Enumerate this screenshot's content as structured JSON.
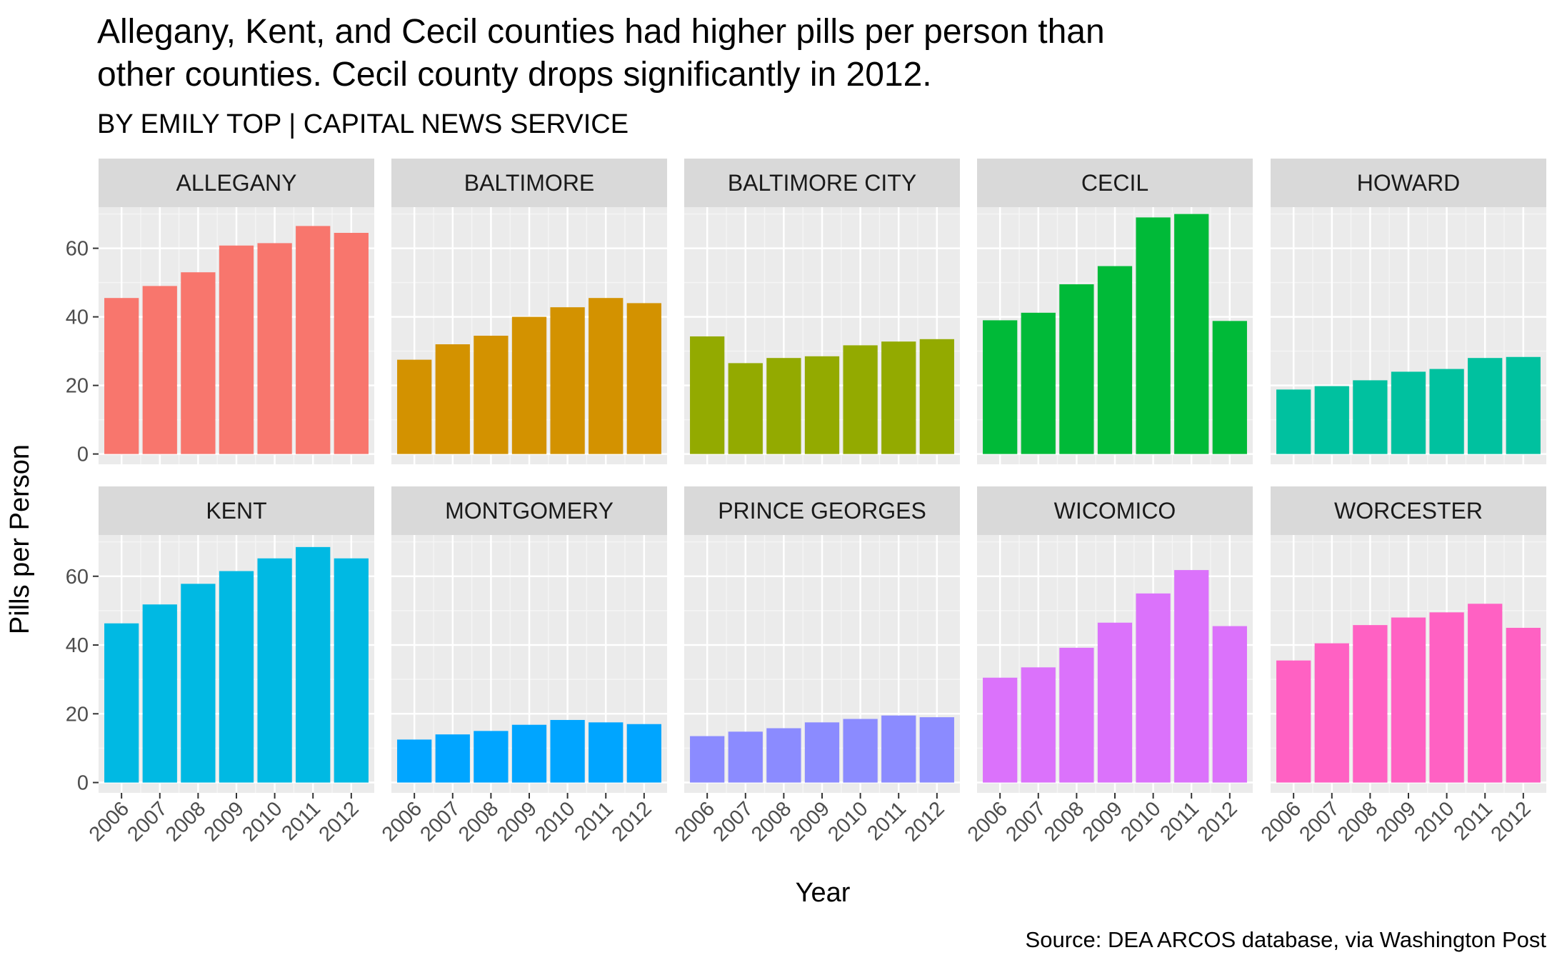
{
  "chart_data": {
    "type": "bar",
    "title_lines": [
      "Allegany, Kent, and Cecil counties had higher pills per person than",
      "other counties. Cecil county drops significantly in 2012."
    ],
    "subtitle": "BY EMILY TOP | CAPITAL NEWS SERVICE",
    "caption": "Source: DEA ARCOS database, via Washington Post",
    "xlabel": "Year",
    "ylabel": "Pills per Person",
    "ylim": [
      -3,
      72
    ],
    "yticks": [
      0,
      20,
      40,
      60
    ],
    "categories": [
      "2006",
      "2007",
      "2008",
      "2009",
      "2010",
      "2011",
      "2012"
    ],
    "facet_layout": "2 rows x 5 columns",
    "facets": [
      {
        "name": "ALLEGANY",
        "color": "#F8766D",
        "values": [
          45.5,
          49,
          53,
          60.8,
          61.5,
          66.5,
          64.5
        ]
      },
      {
        "name": "BALTIMORE",
        "color": "#D39200",
        "values": [
          27.5,
          32,
          34.5,
          40,
          42.8,
          45.5,
          44
        ]
      },
      {
        "name": "BALTIMORE CITY",
        "color": "#93AA00",
        "values": [
          34.3,
          26.5,
          28,
          28.5,
          31.7,
          32.8,
          33.5
        ]
      },
      {
        "name": "CECIL",
        "color": "#00BA38",
        "values": [
          39,
          41.2,
          49.5,
          54.8,
          69,
          70,
          38.8
        ]
      },
      {
        "name": "HOWARD",
        "color": "#00C19F",
        "values": [
          18.8,
          19.8,
          21.5,
          24,
          24.8,
          28,
          28.3
        ]
      },
      {
        "name": "KENT",
        "color": "#00B9E3",
        "values": [
          46.3,
          51.8,
          57.8,
          61.5,
          65.2,
          68.5,
          65.2
        ]
      },
      {
        "name": "MONTGOMERY",
        "color": "#00A5FF",
        "values": [
          12.5,
          14,
          15,
          16.8,
          18.2,
          17.5,
          17
        ]
      },
      {
        "name": "PRINCE GEORGES",
        "color": "#8B8BFF",
        "values": [
          13.5,
          14.8,
          15.8,
          17.5,
          18.5,
          19.5,
          19
        ]
      },
      {
        "name": "WICOMICO",
        "color": "#DB72FB",
        "values": [
          30.5,
          33.5,
          39.2,
          46.5,
          55,
          61.8,
          45.5
        ]
      },
      {
        "name": "WORCESTER",
        "color": "#FF61C3",
        "values": [
          35.5,
          40.5,
          45.8,
          48,
          49.5,
          52,
          45
        ]
      }
    ]
  }
}
